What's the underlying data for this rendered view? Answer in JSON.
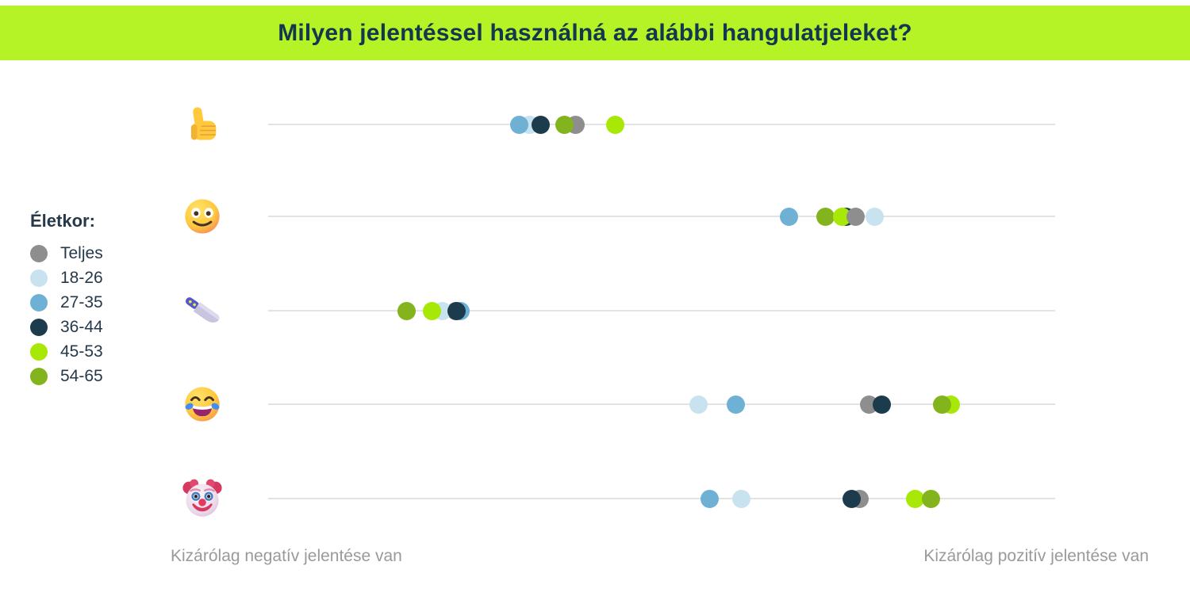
{
  "title": "Milyen jelentéssel használná az alábbi hangulatjeleket?",
  "colors": {
    "banner": "#b5f226",
    "title_text": "#143750",
    "legend_text": "#26394a",
    "axis_line": "#e3e3e3",
    "axis_label_text": "#9a9a9a"
  },
  "legend": {
    "heading": "Életkor:",
    "items": [
      {
        "label": "Teljes",
        "color": "#8e8e8e"
      },
      {
        "label": "18-26",
        "color": "#c9e2ef"
      },
      {
        "label": "27-35",
        "color": "#6fb1d4"
      },
      {
        "label": "36-44",
        "color": "#1c3c4e"
      },
      {
        "label": "45-53",
        "color": "#a7e806"
      },
      {
        "label": "54-65",
        "color": "#84b41d"
      }
    ]
  },
  "axis": {
    "left_label": "Kizárólag negatív jelentése van",
    "right_label": "Kizárólag pozitív jelentése van"
  },
  "chart_data": {
    "type": "scatter",
    "title": "Milyen jelentéssel használná az alábbi hangulatjeleket?",
    "x_scale": {
      "min": 0,
      "max": 100,
      "min_label": "Kizárólag negatív jelentése van",
      "max_label": "Kizárólag pozitív jelentése van",
      "unit": "percent of axis, negative→positive"
    },
    "series_legend": "Életkor: Teljes, 18-26, 27-35, 36-44, 45-53, 54-65",
    "rows": [
      {
        "emoji": "thumbs-up",
        "dots": [
          {
            "group": "18-26",
            "pos": 33.2
          },
          {
            "group": "27-35",
            "pos": 31.9
          },
          {
            "group": "Teljes",
            "pos": 39.1
          },
          {
            "group": "54-65",
            "pos": 37.7
          },
          {
            "group": "36-44",
            "pos": 34.6
          },
          {
            "group": "45-53",
            "pos": 44.1
          }
        ]
      },
      {
        "emoji": "slightly-smiling-face",
        "dots": [
          {
            "group": "36-44",
            "pos": 73.4
          },
          {
            "group": "54-65",
            "pos": 70.8
          },
          {
            "group": "45-53",
            "pos": 72.9
          },
          {
            "group": "Teljes",
            "pos": 74.6
          },
          {
            "group": "27-35",
            "pos": 66.2
          },
          {
            "group": "18-26",
            "pos": 77.1
          }
        ]
      },
      {
        "emoji": "kitchen-knife",
        "dots": [
          {
            "group": "Teljes",
            "pos": 23.8
          },
          {
            "group": "27-35",
            "pos": 24.4
          },
          {
            "group": "18-26",
            "pos": 22.1
          },
          {
            "group": "36-44",
            "pos": 23.9
          },
          {
            "group": "45-53",
            "pos": 20.8
          },
          {
            "group": "54-65",
            "pos": 17.6
          }
        ]
      },
      {
        "emoji": "face-with-tears-of-joy",
        "dots": [
          {
            "group": "18-26",
            "pos": 54.7
          },
          {
            "group": "27-35",
            "pos": 59.4
          },
          {
            "group": "Teljes",
            "pos": 76.4
          },
          {
            "group": "36-44",
            "pos": 78.0
          },
          {
            "group": "45-53",
            "pos": 86.7
          },
          {
            "group": "54-65",
            "pos": 85.6
          }
        ]
      },
      {
        "emoji": "clown-face",
        "dots": [
          {
            "group": "27-35",
            "pos": 56.1
          },
          {
            "group": "18-26",
            "pos": 60.1
          },
          {
            "group": "Teljes",
            "pos": 75.2
          },
          {
            "group": "36-44",
            "pos": 74.1
          },
          {
            "group": "45-53",
            "pos": 82.2
          },
          {
            "group": "54-65",
            "pos": 84.2
          }
        ]
      }
    ]
  }
}
